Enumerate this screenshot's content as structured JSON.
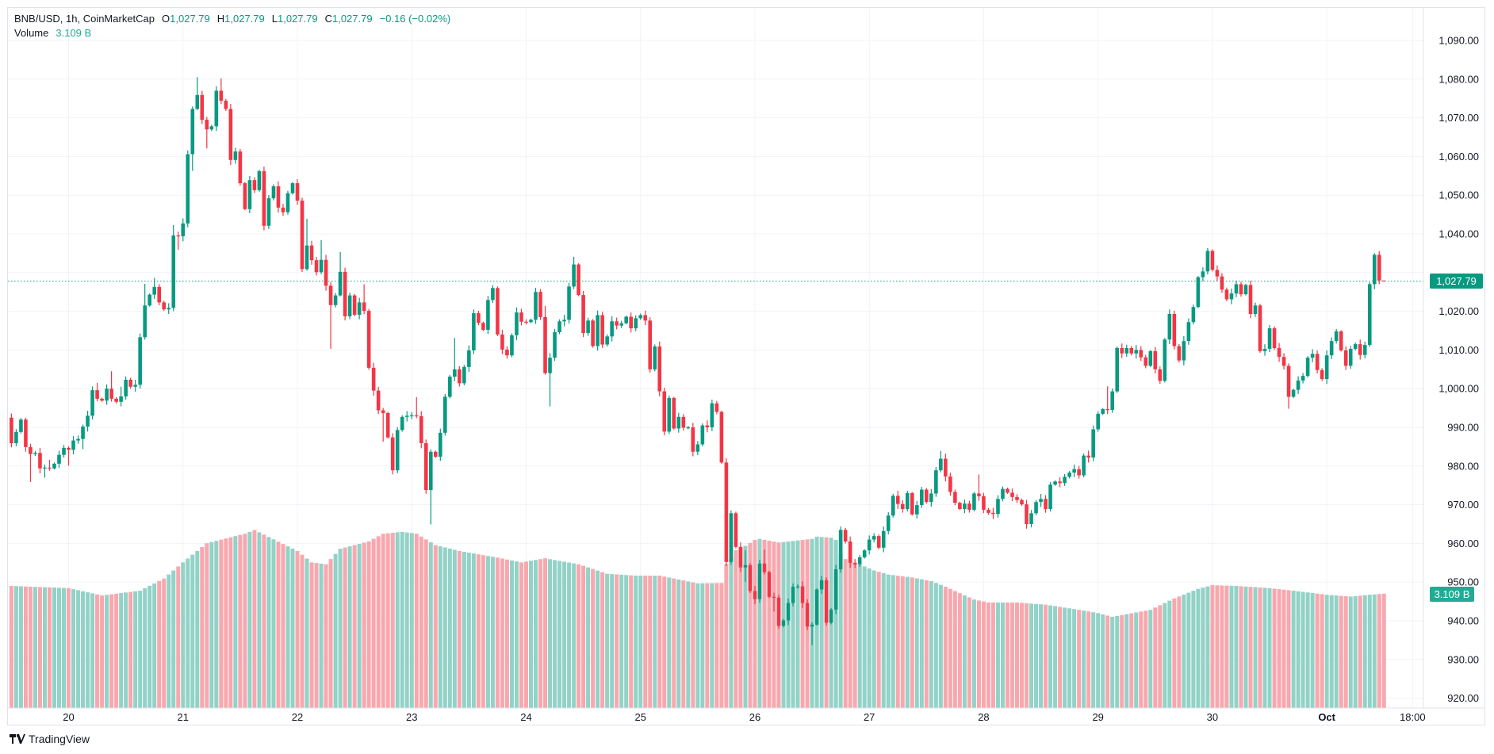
{
  "legend": {
    "symbol": "BNB/USD, 1h, CoinMarketCap",
    "o_label": "O",
    "o_value": "1,027.79",
    "h_label": "H",
    "h_value": "1,027.79",
    "l_label": "L",
    "l_value": "1,027.79",
    "c_label": "C",
    "c_value": "1,027.79",
    "change": "−0.16 (−0.02%)",
    "volume_label": "Volume",
    "volume_value": "3.109 B"
  },
  "branding": {
    "logo_text": "TradingView"
  },
  "colors": {
    "up": "#089981",
    "down": "#f23645",
    "vol_up": "#92d2c7",
    "vol_down": "#f9a7ae",
    "grid": "#f0f3fa"
  },
  "chart_data": {
    "type": "candlestick",
    "symbol": "BNB/USD",
    "interval": "1h",
    "start": "Sep 19 12:00",
    "first_open": 992.5,
    "closes": [
      985.9,
      988.8,
      992.0,
      984.9,
      983.1,
      983.4,
      979.4,
      979.6,
      979.4,
      980.6,
      982.9,
      984.7,
      984.2,
      986.6,
      987.0,
      990.2,
      993.0,
      999.6,
      997.4,
      996.9,
      1000.0,
      997.4,
      996.6,
      998.0,
      1002.3,
      1000.5,
      1001.0,
      1013.3,
      1021.5,
      1024.3,
      1026.3,
      1022.3,
      1020.5,
      1020.9,
      1039.6,
      1039.4,
      1042.7,
      1060.6,
      1072.3,
      1075.9,
      1069.5,
      1067.0,
      1067.8,
      1077.0,
      1074.4,
      1072.3,
      1059.1,
      1061.3,
      1053.1,
      1046.4,
      1053.9,
      1051.3,
      1056.2,
      1042.1,
      1049.2,
      1052.3,
      1046.8,
      1045.6,
      1050.5,
      1053.1,
      1048.6,
      1030.9,
      1037.0,
      1033.2,
      1030.1,
      1033.3,
      1026.6,
      1021.6,
      1024.1,
      1030.2,
      1018.7,
      1024.1,
      1019.1,
      1022.3,
      1020.1,
      1005.4,
      999.5,
      994.4,
      993.7,
      987.4,
      978.9,
      989.3,
      992.7,
      993.0,
      993.1,
      992.9,
      985.9,
      973.8,
      983.7,
      982.4,
      988.6,
      997.9,
      1003.1,
      1005.0,
      1001.4,
      1005.6,
      1009.9,
      1019.5,
      1017.0,
      1015.2,
      1022.9,
      1026.0,
      1014.0,
      1010.1,
      1008.6,
      1013.8,
      1019.7,
      1017.3,
      1017.2,
      1017.8,
      1025.0,
      1018.5,
      1004.0,
      1008.0,
      1014.6,
      1017.4,
      1017.8,
      1026.4,
      1032.1,
      1024.2,
      1014.4,
      1017.6,
      1011.0,
      1019.0,
      1011.4,
      1013.5,
      1017.4,
      1016.3,
      1016.9,
      1018.6,
      1015.6,
      1018.2,
      1019.0,
      1017.6,
      1005.0,
      1010.9,
      999.3,
      988.9,
      997.6,
      989.7,
      992.7,
      989.9,
      990.0,
      983.7,
      985.6,
      990.5,
      990.0,
      996.2,
      994.0,
      980.9,
      955.2,
      967.8,
      959.1,
      953.8,
      954.4,
      947.7,
      945.6,
      954.8,
      952.6,
      946.2,
      946.0,
      938.7,
      940.1,
      944.6,
      948.8,
      948.9,
      944.6,
      938.5,
      939.0,
      948.1,
      950.5,
      939.5,
      942.9,
      953.3,
      963.5,
      960.5,
      955.0,
      954.6,
      956.4,
      958.2,
      961.0,
      961.9,
      958.9,
      963.2,
      967.2,
      972.3,
      970.2,
      968.9,
      973.0,
      967.5,
      969.9,
      973.9,
      970.7,
      972.9,
      978.9,
      981.9,
      977.3,
      973.3,
      970.5,
      968.9,
      970.3,
      968.7,
      972.9,
      972.2,
      968.7,
      967.9,
      967.6,
      971.5,
      974.1,
      973.1,
      972.0,
      971.2,
      970.1,
      965.0,
      967.8,
      970.7,
      971.5,
      968.9,
      975.2,
      976.0,
      975.6,
      977.2,
      978.3,
      979.2,
      977.6,
      982.7,
      982.2,
      989.5,
      993.5,
      994.7,
      994.5,
      999.3,
      1010.5,
      1009.1,
      1010.5,
      1009.1,
      1010.0,
      1008.1,
      1005.9,
      1009.7,
      1005.0,
      1002.0,
      1012.7,
      1019.3,
      1011.0,
      1007.3,
      1012.3,
      1017.2,
      1021.1,
      1028.8,
      1030.3,
      1035.6,
      1030.7,
      1029.0,
      1025.6,
      1023.1,
      1024.6,
      1027.0,
      1024.4,
      1026.8,
      1019.3,
      1021.5,
      1009.7,
      1010.3,
      1015.6,
      1010.5,
      1008.2,
      1005.9,
      997.9,
      999.7,
      1002.1,
      1003.3,
      1008.0,
      1009.0,
      1004.8,
      1002.5,
      1008.6,
      1012.3,
      1014.8,
      1009.9,
      1005.9,
      1010.3,
      1011.5,
      1008.7,
      1011.3,
      1027.0,
      1034.6,
      1027.95,
      1027.79
    ],
    "wick_extremes": [
      [
        4,
        992.5,
        null
      ],
      [
        5,
        null,
        975.9
      ],
      [
        8,
        980.4,
        977.0
      ],
      [
        9,
        981.6,
        null
      ],
      [
        13,
        null,
        980.1
      ],
      [
        16,
        null,
        984.4
      ],
      [
        19,
        1001.5,
        null
      ],
      [
        22,
        1004.5,
        null
      ],
      [
        24,
        1000.5,
        null
      ],
      [
        29,
        1027.1,
        null
      ],
      [
        31,
        1028.6,
        null
      ],
      [
        35,
        1042.3,
        null
      ],
      [
        36,
        1040.6,
        1035.9
      ],
      [
        39,
        null,
        1056.3
      ],
      [
        40,
        1080.5,
        null
      ],
      [
        42,
        null,
        1062.1
      ],
      [
        45,
        1080.2,
        null
      ],
      [
        63,
        1043.9,
        null
      ],
      [
        66,
        1038.4,
        null
      ],
      [
        68,
        null,
        1010.3
      ],
      [
        70,
        1035.3,
        null
      ],
      [
        75,
        1027.0,
        null
      ],
      [
        79,
        null,
        986.3
      ],
      [
        86,
        997.8,
        null
      ],
      [
        89,
        null,
        964.9
      ],
      [
        94,
        1013.1,
        null
      ],
      [
        113,
        1021.4,
        null
      ],
      [
        114,
        null,
        995.4
      ],
      [
        119,
        1034.1,
        null
      ],
      [
        155,
        958.2,
        950.1
      ],
      [
        159,
        958.4,
        null
      ],
      [
        161,
        null,
        942.4
      ],
      [
        169,
        null,
        933.7
      ],
      [
        196,
        983.9,
        null
      ],
      [
        204,
        977.8,
        null
      ],
      [
        231,
        1000.6,
        null
      ],
      [
        269,
        null,
        994.8
      ],
      [
        287,
        1035.0,
        null
      ],
      [
        289,
        1027.79,
        1027.79
      ]
    ],
    "volume_unit": "B",
    "volume_profile": [
      [
        1,
        3.32
      ],
      [
        13,
        3.26
      ],
      [
        20,
        3.06
      ],
      [
        28,
        3.19
      ],
      [
        33,
        3.52
      ],
      [
        37,
        3.96
      ],
      [
        42,
        4.48
      ],
      [
        50,
        4.74
      ],
      [
        52,
        4.84
      ],
      [
        61,
        4.27
      ],
      [
        64,
        3.96
      ],
      [
        67,
        3.91
      ],
      [
        70,
        4.33
      ],
      [
        76,
        4.53
      ],
      [
        79,
        4.74
      ],
      [
        83,
        4.79
      ],
      [
        86,
        4.74
      ],
      [
        90,
        4.43
      ],
      [
        95,
        4.27
      ],
      [
        103,
        4.09
      ],
      [
        108,
        3.96
      ],
      [
        113,
        4.07
      ],
      [
        120,
        3.91
      ],
      [
        126,
        3.65
      ],
      [
        132,
        3.6
      ],
      [
        137,
        3.6
      ],
      [
        145,
        3.39
      ],
      [
        150,
        3.4
      ],
      [
        151,
        3.92
      ],
      [
        153,
        4.29
      ],
      [
        155,
        4.41
      ],
      [
        157,
        4.57
      ],
      [
        158,
        4.6
      ],
      [
        162,
        4.5
      ],
      [
        169,
        4.6
      ],
      [
        170,
        4.66
      ],
      [
        173,
        4.63
      ],
      [
        174,
        4.57
      ],
      [
        175,
        4.2
      ],
      [
        176,
        4.05
      ],
      [
        178,
        3.95
      ],
      [
        180,
        3.85
      ],
      [
        182,
        3.74
      ],
      [
        185,
        3.63
      ],
      [
        190,
        3.55
      ],
      [
        194,
        3.45
      ],
      [
        197,
        3.3
      ],
      [
        200,
        3.12
      ],
      [
        203,
        2.95
      ],
      [
        206,
        2.87
      ],
      [
        212,
        2.87
      ],
      [
        218,
        2.81
      ],
      [
        222,
        2.73
      ],
      [
        226,
        2.65
      ],
      [
        229,
        2.58
      ],
      [
        232,
        2.48
      ],
      [
        240,
        2.67
      ],
      [
        245,
        2.98
      ],
      [
        250,
        3.24
      ],
      [
        253,
        3.34
      ],
      [
        258,
        3.32
      ],
      [
        265,
        3.26
      ],
      [
        270,
        3.19
      ],
      [
        277,
        3.08
      ],
      [
        282,
        3.03
      ],
      [
        286,
        3.08
      ],
      [
        289,
        3.109
      ]
    ],
    "y_ticks": [
      "1,090.00",
      "1,080.00",
      "1,070.00",
      "1,060.00",
      "1,050.00",
      "1,040.00",
      "1,030.00",
      "1,020.00",
      "1,010.00",
      "1,000.00",
      "990.00",
      "980.00",
      "970.00",
      "960.00",
      "950.00",
      "940.00",
      "930.00",
      "920.00"
    ],
    "y_tick_values": [
      1090,
      1080,
      1070,
      1060,
      1050,
      1040,
      1030,
      1020,
      1010,
      1000,
      990,
      980,
      970,
      960,
      950,
      940,
      930,
      920
    ],
    "x_ticks": [
      {
        "label": "20",
        "candle": 13,
        "bold": false
      },
      {
        "label": "21",
        "candle": 37,
        "bold": false
      },
      {
        "label": "22",
        "candle": 61,
        "bold": false
      },
      {
        "label": "23",
        "candle": 85,
        "bold": false
      },
      {
        "label": "24",
        "candle": 109,
        "bold": false
      },
      {
        "label": "25",
        "candle": 133,
        "bold": false
      },
      {
        "label": "26",
        "candle": 157,
        "bold": false
      },
      {
        "label": "27",
        "candle": 181,
        "bold": false
      },
      {
        "label": "28",
        "candle": 205,
        "bold": false
      },
      {
        "label": "29",
        "candle": 229,
        "bold": false
      },
      {
        "label": "30",
        "candle": 253,
        "bold": false
      },
      {
        "label": "Oct",
        "candle": 277,
        "bold": true
      },
      {
        "label": "18:00",
        "candle": 295,
        "bold": false
      }
    ],
    "last_price": 1027.79,
    "last_price_label": "1,027.79",
    "last_volume_label": "3.109 B",
    "ylim": [
      918,
      1092
    ]
  }
}
